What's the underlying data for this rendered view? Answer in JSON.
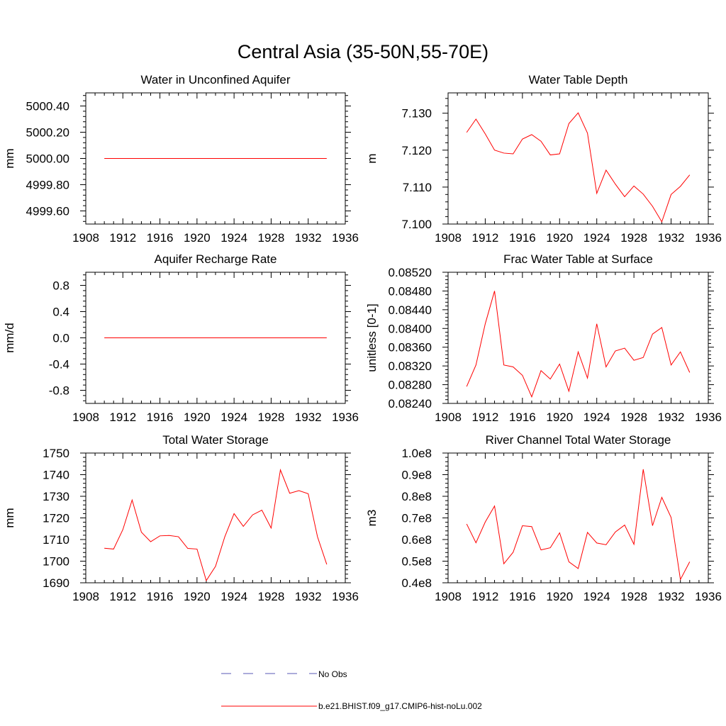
{
  "figure": {
    "title": "Central Asia (35-50N,55-70E)"
  },
  "legend": {
    "placement": "bottom-center",
    "entries": [
      {
        "label": "No Obs",
        "color": "#5a5ab4",
        "dash": "dashed"
      },
      {
        "label": "b.e21.BHIST.f09_g17.CMIP6-hist-noLu.002",
        "color": "#ff0000",
        "dash": "solid"
      }
    ]
  },
  "chart_data": [
    {
      "type": "line",
      "title": "Water in Unconfined Aquifer",
      "ylabel": "mm",
      "xlim": [
        1908,
        1936
      ],
      "x_ticks": [
        1908,
        1912,
        1916,
        1920,
        1924,
        1928,
        1932,
        1936
      ],
      "ylim": [
        4999.5,
        5000.5
      ],
      "y_ticks": [
        4999.6,
        4999.8,
        5000.0,
        5000.2,
        5000.4
      ],
      "y_decimals": 2,
      "series": [
        {
          "color": "#ff0000",
          "x": [
            1910,
            1911,
            1912,
            1913,
            1914,
            1915,
            1916,
            1917,
            1918,
            1919,
            1920,
            1921,
            1922,
            1923,
            1924,
            1925,
            1926,
            1927,
            1928,
            1929,
            1930,
            1931,
            1932,
            1933,
            1934
          ],
          "values": [
            5000,
            5000,
            5000,
            5000,
            5000,
            5000,
            5000,
            5000,
            5000,
            5000,
            5000,
            5000,
            5000,
            5000,
            5000,
            5000,
            5000,
            5000,
            5000,
            5000,
            5000,
            5000,
            5000,
            5000,
            5000
          ]
        }
      ]
    },
    {
      "type": "line",
      "title": "Water Table Depth",
      "ylabel": "m",
      "xlim": [
        1908,
        1936
      ],
      "x_ticks": [
        1908,
        1912,
        1916,
        1920,
        1924,
        1928,
        1932,
        1936
      ],
      "ylim": [
        7.1,
        7.1355
      ],
      "y_ticks": [
        7.1,
        7.11,
        7.12,
        7.13
      ],
      "y_decimals": 3,
      "series": [
        {
          "color": "#ff0000",
          "x": [
            1910,
            1911,
            1912,
            1913,
            1914,
            1915,
            1916,
            1917,
            1918,
            1919,
            1920,
            1921,
            1922,
            1923,
            1924,
            1925,
            1926,
            1927,
            1928,
            1929,
            1930,
            1931,
            1932,
            1933,
            1934
          ],
          "values": [
            7.1248,
            7.1284,
            7.1244,
            7.12,
            7.1192,
            7.119,
            7.123,
            7.1242,
            7.1224,
            7.1187,
            7.119,
            7.1272,
            7.1301,
            7.1246,
            7.1083,
            7.1146,
            7.1108,
            7.1074,
            7.1103,
            7.1081,
            7.1048,
            7.1006,
            7.108,
            7.1102,
            7.1133
          ]
        }
      ]
    },
    {
      "type": "line",
      "title": "Aquifer Recharge Rate",
      "ylabel": "mm/d",
      "xlim": [
        1908,
        1936
      ],
      "x_ticks": [
        1908,
        1912,
        1916,
        1920,
        1924,
        1928,
        1932,
        1936
      ],
      "ylim": [
        -1.0,
        1.0
      ],
      "y_ticks": [
        -0.8,
        -0.4,
        0.0,
        0.4,
        0.8
      ],
      "y_decimals": 1,
      "series": [
        {
          "color": "#ff0000",
          "x": [
            1910,
            1911,
            1912,
            1913,
            1914,
            1915,
            1916,
            1917,
            1918,
            1919,
            1920,
            1921,
            1922,
            1923,
            1924,
            1925,
            1926,
            1927,
            1928,
            1929,
            1930,
            1931,
            1932,
            1933,
            1934
          ],
          "values": [
            0,
            0,
            0,
            0,
            0,
            0,
            0,
            0,
            0,
            0,
            0,
            0,
            0,
            0,
            0,
            0,
            0,
            0,
            0,
            0,
            0,
            0,
            0,
            0,
            0
          ]
        }
      ]
    },
    {
      "type": "line",
      "title": "Frac Water Table at Surface",
      "ylabel": "unitless [0-1]",
      "xlim": [
        1908,
        1936
      ],
      "x_ticks": [
        1908,
        1912,
        1916,
        1920,
        1924,
        1928,
        1932,
        1936
      ],
      "ylim": [
        0.0824,
        0.0852
      ],
      "y_ticks": [
        0.0824,
        0.0828,
        0.0832,
        0.0836,
        0.084,
        0.0844,
        0.0848,
        0.0852
      ],
      "y_decimals": 5,
      "series": [
        {
          "color": "#ff0000",
          "x": [
            1910,
            1911,
            1912,
            1913,
            1914,
            1915,
            1916,
            1917,
            1918,
            1919,
            1920,
            1921,
            1922,
            1923,
            1924,
            1925,
            1926,
            1927,
            1928,
            1929,
            1930,
            1931,
            1932,
            1933,
            1934
          ],
          "values": [
            0.08276,
            0.08322,
            0.0841,
            0.0848,
            0.08322,
            0.08318,
            0.083,
            0.08254,
            0.0831,
            0.08292,
            0.08324,
            0.08266,
            0.0835,
            0.08294,
            0.0841,
            0.08318,
            0.08352,
            0.08358,
            0.08332,
            0.08338,
            0.08388,
            0.08402,
            0.08322,
            0.0835,
            0.08306
          ]
        }
      ]
    },
    {
      "type": "line",
      "title": "Total Water Storage",
      "ylabel": "mm",
      "xlim": [
        1908,
        1936
      ],
      "x_ticks": [
        1908,
        1912,
        1916,
        1920,
        1924,
        1928,
        1932,
        1936
      ],
      "ylim": [
        1690,
        1750
      ],
      "y_ticks": [
        1690,
        1700,
        1710,
        1720,
        1730,
        1740,
        1750
      ],
      "y_decimals": 0,
      "series": [
        {
          "color": "#ff0000",
          "x": [
            1910,
            1911,
            1912,
            1913,
            1914,
            1915,
            1916,
            1917,
            1918,
            1919,
            1920,
            1921,
            1922,
            1923,
            1924,
            1925,
            1926,
            1927,
            1928,
            1929,
            1930,
            1931,
            1932,
            1933,
            1934
          ],
          "values": [
            1706.0,
            1705.6,
            1714.6,
            1728.3,
            1713.4,
            1709.0,
            1711.7,
            1711.9,
            1711.3,
            1705.9,
            1705.6,
            1691.0,
            1697.6,
            1711.3,
            1722.0,
            1716.1,
            1721.4,
            1723.6,
            1715.3,
            1742.2,
            1731.4,
            1732.6,
            1731.2,
            1711.3,
            1698.5
          ]
        }
      ]
    },
    {
      "type": "line",
      "title": "River Channel Total Water Storage",
      "ylabel": "m3",
      "xlim": [
        1908,
        1936
      ],
      "x_ticks": [
        1908,
        1912,
        1916,
        1920,
        1924,
        1928,
        1932,
        1936
      ],
      "ylim": [
        0.4,
        1.0
      ],
      "y_ticks": [
        0.4,
        0.5,
        0.6,
        0.7,
        0.8,
        0.9,
        1.0
      ],
      "y_tick_labels": [
        "0.4e8",
        "0.5e8",
        "0.6e8",
        "0.7e8",
        "0.8e8",
        "0.9e8",
        "1.0e8"
      ],
      "y_decimals": 1,
      "series": [
        {
          "color": "#ff0000",
          "x": [
            1910,
            1911,
            1912,
            1913,
            1914,
            1915,
            1916,
            1917,
            1918,
            1919,
            1920,
            1921,
            1922,
            1923,
            1924,
            1925,
            1926,
            1927,
            1928,
            1929,
            1930,
            1931,
            1932,
            1933,
            1934
          ],
          "values": [
            0.672,
            0.585,
            0.681,
            0.755,
            0.488,
            0.541,
            0.664,
            0.66,
            0.552,
            0.562,
            0.631,
            0.497,
            0.466,
            0.633,
            0.584,
            0.576,
            0.635,
            0.667,
            0.578,
            0.925,
            0.664,
            0.795,
            0.702,
            0.415,
            0.497
          ]
        }
      ]
    }
  ]
}
